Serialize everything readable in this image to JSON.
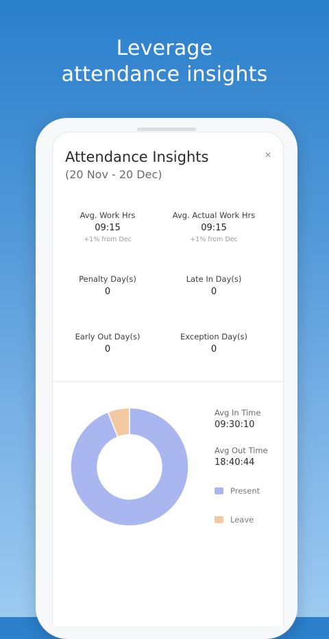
{
  "headline": {
    "line1": "Leverage",
    "line2": "attendance insights"
  },
  "card": {
    "title": "Attendance Insights",
    "date_range": "(20 Nov - 20 Dec)",
    "close_glyph": "×"
  },
  "stats": {
    "avg_work_hrs": {
      "label": "Avg. Work Hrs",
      "value": "09:15",
      "note": "+1% from Dec"
    },
    "avg_actual_work_hrs": {
      "label": "Avg. Actual Work Hrs",
      "value": "09:15",
      "note": "+1% from Dec"
    },
    "penalty_days": {
      "label": "Penalty Day(s)",
      "value": "0"
    },
    "late_in_days": {
      "label": "Late In Day(s)",
      "value": "0"
    },
    "early_out_days": {
      "label": "Early Out Day(s)",
      "value": "0"
    },
    "exception_days": {
      "label": "Exception Day(s)",
      "value": "0"
    }
  },
  "times": {
    "avg_in_label": "Avg In Time",
    "avg_in_value": "09:30:10",
    "avg_out_label": "Avg Out Time",
    "avg_out_value": "18:40:44"
  },
  "chart_data": {
    "type": "pie",
    "categories": [
      "Present",
      "Leave"
    ],
    "values": [
      94,
      6
    ],
    "colors": [
      "#a9b6ef",
      "#f3c9a1"
    ],
    "title": "",
    "legend_placement": "right"
  },
  "legend": [
    {
      "label": "Present",
      "color": "#a9b6ef"
    },
    {
      "label": "Leave",
      "color": "#f3c9a1"
    }
  ],
  "colors": {
    "background_top": "#2a7fcb",
    "background_bottom": "#9ccaf1"
  }
}
